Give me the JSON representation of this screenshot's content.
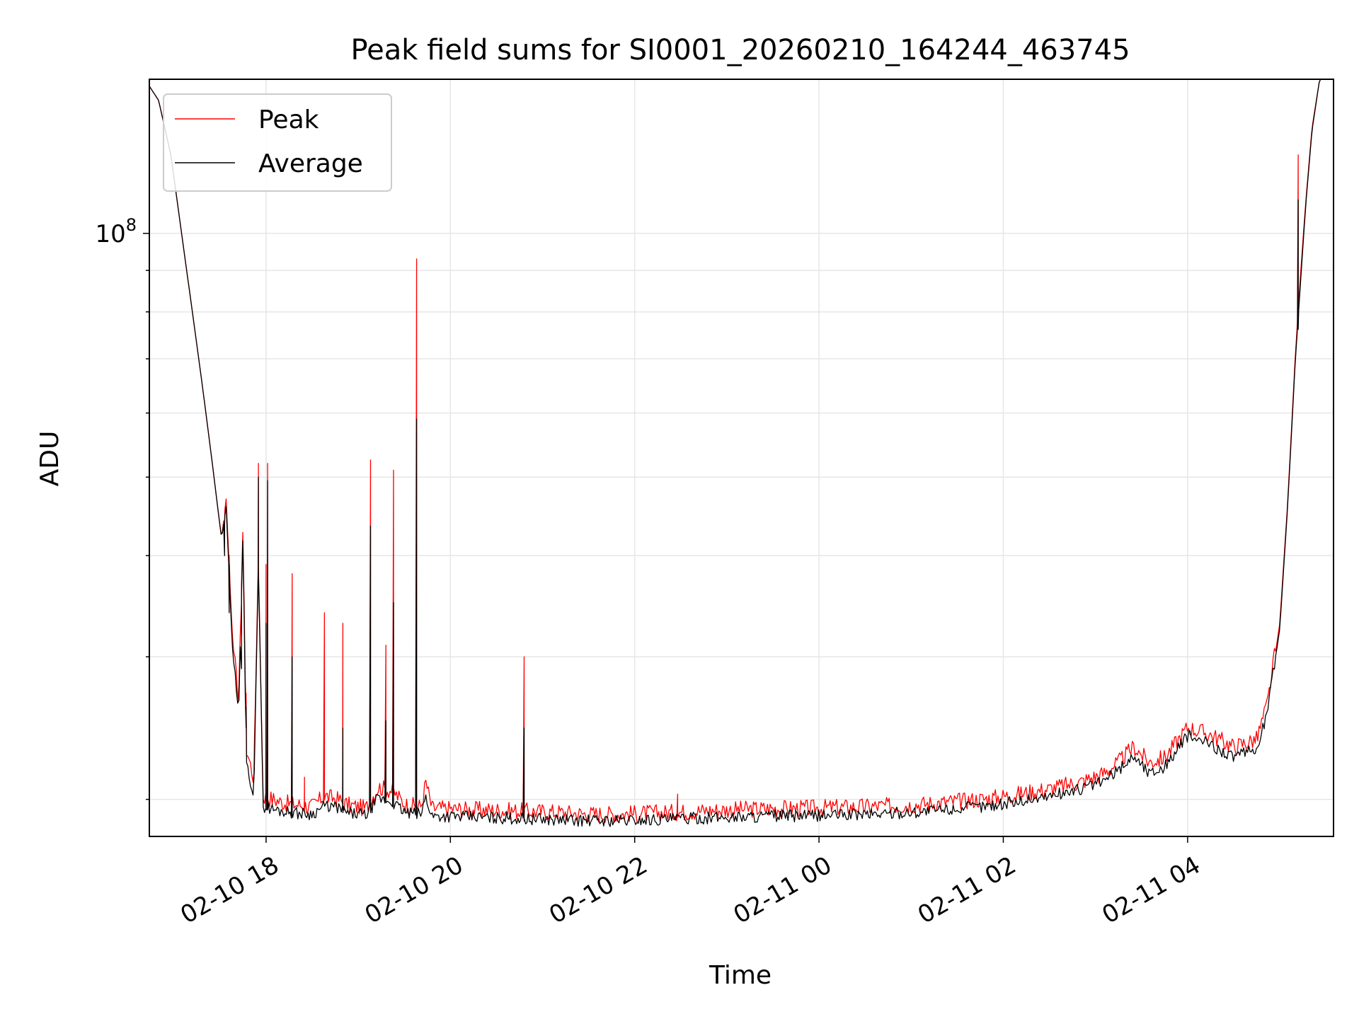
{
  "chart_data": {
    "type": "line",
    "title": "Peak field sums for SI0001_20260210_164244_463745",
    "xlabel": "Time",
    "ylabel": "ADU",
    "y_scale": "log",
    "ylim": [
      18000000,
      155000000
    ],
    "xlim": [
      "2026-02-10T16:44",
      "2026-02-11T05:35"
    ],
    "grid": true,
    "legend_position": "upper left",
    "x_ticks": [
      {
        "t": "2026-02-10T18:00",
        "label": "02-10 18"
      },
      {
        "t": "2026-02-10T20:00",
        "label": "02-10 20"
      },
      {
        "t": "2026-02-10T22:00",
        "label": "02-10 22"
      },
      {
        "t": "2026-02-11T00:00",
        "label": "02-11 00"
      },
      {
        "t": "2026-02-11T02:00",
        "label": "02-11 02"
      },
      {
        "t": "2026-02-11T04:00",
        "label": "02-11 04"
      }
    ],
    "y_ticks": [
      {
        "value": 100000000,
        "label": "10",
        "exp": "8"
      }
    ],
    "series": [
      {
        "name": "Peak",
        "color": "#ff0000",
        "points": [
          [
            "2026-02-10T16:44",
            152000000
          ],
          [
            "2026-02-10T16:50",
            146000000
          ],
          [
            "2026-02-10T16:58",
            125000000
          ],
          [
            "2026-02-10T17:05",
            100000000
          ],
          [
            "2026-02-10T17:12",
            80000000
          ],
          [
            "2026-02-10T17:18",
            66000000
          ],
          [
            "2026-02-10T17:25",
            52000000
          ],
          [
            "2026-02-10T17:31",
            42000000
          ],
          [
            "2026-02-10T17:34",
            47000000
          ],
          [
            "2026-02-10T17:38",
            32000000
          ],
          [
            "2026-02-10T17:42",
            26000000
          ],
          [
            "2026-02-10T17:45",
            44000000
          ],
          [
            "2026-02-10T17:47",
            23000000
          ],
          [
            "2026-02-10T17:52",
            21000000
          ],
          [
            "2026-02-10T17:55",
            40000000
          ],
          [
            "2026-02-10T17:58",
            20000000
          ],
          [
            "2026-02-10T18:05",
            19800000
          ],
          [
            "2026-02-10T18:12",
            19600000
          ],
          [
            "2026-02-10T18:21",
            19500000
          ],
          [
            "2026-02-10T18:30",
            19400000
          ],
          [
            "2026-02-10T18:38",
            20000000
          ],
          [
            "2026-02-10T18:47",
            19800000
          ],
          [
            "2026-02-10T18:53",
            19500000
          ],
          [
            "2026-02-10T19:05",
            19300000
          ],
          [
            "2026-02-10T19:13",
            20500000
          ],
          [
            "2026-02-10T19:22",
            20300000
          ],
          [
            "2026-02-10T19:31",
            19500000
          ],
          [
            "2026-02-10T19:41",
            19400000
          ],
          [
            "2026-02-10T19:44",
            20800000
          ],
          [
            "2026-02-10T19:48",
            19300000
          ],
          [
            "2026-02-10T19:55",
            19300000
          ],
          [
            "2026-02-10T20:10",
            19250000
          ],
          [
            "2026-02-10T20:30",
            19200000
          ],
          [
            "2026-02-10T20:50",
            19150000
          ],
          [
            "2026-02-10T21:10",
            19100000
          ],
          [
            "2026-02-10T21:30",
            19000000
          ],
          [
            "2026-02-10T21:50",
            19000000
          ],
          [
            "2026-02-10T22:10",
            19050000
          ],
          [
            "2026-02-10T22:30",
            19100000
          ],
          [
            "2026-02-10T22:50",
            19200000
          ],
          [
            "2026-02-10T23:10",
            19250000
          ],
          [
            "2026-02-10T23:30",
            19300000
          ],
          [
            "2026-02-10T23:50",
            19300000
          ],
          [
            "2026-02-11T00:10",
            19350000
          ],
          [
            "2026-02-11T00:30",
            19400000
          ],
          [
            "2026-02-11T00:50",
            19450000
          ],
          [
            "2026-02-11T01:10",
            19550000
          ],
          [
            "2026-02-11T01:30",
            19700000
          ],
          [
            "2026-02-11T01:50",
            19850000
          ],
          [
            "2026-02-11T02:10",
            20100000
          ],
          [
            "2026-02-11T02:30",
            20400000
          ],
          [
            "2026-02-11T02:50",
            20800000
          ],
          [
            "2026-02-11T03:05",
            21300000
          ],
          [
            "2026-02-11T03:15",
            22000000
          ],
          [
            "2026-02-11T03:25",
            23000000
          ],
          [
            "2026-02-11T03:35",
            22000000
          ],
          [
            "2026-02-11T03:45",
            22300000
          ],
          [
            "2026-02-11T04:00",
            24300000
          ],
          [
            "2026-02-11T04:15",
            23800000
          ],
          [
            "2026-02-11T04:30",
            23000000
          ],
          [
            "2026-02-11T04:45",
            23500000
          ],
          [
            "2026-02-11T04:52",
            26000000
          ],
          [
            "2026-02-11T05:00",
            33000000
          ],
          [
            "2026-02-11T05:05",
            46000000
          ],
          [
            "2026-02-11T05:10",
            70000000
          ],
          [
            "2026-02-11T05:13",
            86000000
          ],
          [
            "2026-02-11T05:17",
            110000000
          ],
          [
            "2026-02-11T05:21",
            135000000
          ],
          [
            "2026-02-11T05:26",
            155000000
          ],
          [
            "2026-02-11T05:35",
            155000000
          ]
        ],
        "spikes": [
          [
            "2026-02-10T17:33",
            42000000
          ],
          [
            "2026-02-10T17:36",
            39000000
          ],
          [
            "2026-02-10T17:44",
            35000000
          ],
          [
            "2026-02-10T17:47",
            26000000
          ],
          [
            "2026-02-10T17:52",
            21500000
          ],
          [
            "2026-02-10T17:55",
            52000000
          ],
          [
            "2026-02-10T18:00",
            39000000
          ],
          [
            "2026-02-10T18:01",
            52000000
          ],
          [
            "2026-02-10T18:17",
            38000000
          ],
          [
            "2026-02-10T18:25",
            21300000
          ],
          [
            "2026-02-10T18:38",
            34000000
          ],
          [
            "2026-02-10T18:50",
            33000000
          ],
          [
            "2026-02-10T19:08",
            52500000
          ],
          [
            "2026-02-10T19:18",
            31000000
          ],
          [
            "2026-02-10T19:23",
            51000000
          ],
          [
            "2026-02-10T19:38",
            93000000
          ],
          [
            "2026-02-10T20:48",
            30000000
          ],
          [
            "2026-02-10T22:28",
            20300000
          ],
          [
            "2026-02-11T05:12",
            125000000
          ]
        ]
      },
      {
        "name": "Average",
        "color": "#000000",
        "points": [
          [
            "2026-02-10T16:44",
            152000000
          ],
          [
            "2026-02-10T16:50",
            146000000
          ],
          [
            "2026-02-10T16:58",
            125000000
          ],
          [
            "2026-02-10T17:05",
            100000000
          ],
          [
            "2026-02-10T17:12",
            80000000
          ],
          [
            "2026-02-10T17:18",
            66000000
          ],
          [
            "2026-02-10T17:25",
            52000000
          ],
          [
            "2026-02-10T17:31",
            42000000
          ],
          [
            "2026-02-10T17:34",
            46000000
          ],
          [
            "2026-02-10T17:38",
            31000000
          ],
          [
            "2026-02-10T17:42",
            25000000
          ],
          [
            "2026-02-10T17:45",
            43000000
          ],
          [
            "2026-02-10T17:47",
            22000000
          ],
          [
            "2026-02-10T17:52",
            20200000
          ],
          [
            "2026-02-10T17:55",
            39000000
          ],
          [
            "2026-02-10T17:58",
            19500000
          ],
          [
            "2026-02-10T18:05",
            19300000
          ],
          [
            "2026-02-10T18:12",
            19200000
          ],
          [
            "2026-02-10T18:21",
            19100000
          ],
          [
            "2026-02-10T18:30",
            19050000
          ],
          [
            "2026-02-10T18:38",
            19500000
          ],
          [
            "2026-02-10T18:47",
            19400000
          ],
          [
            "2026-02-10T18:53",
            19100000
          ],
          [
            "2026-02-10T19:05",
            19000000
          ],
          [
            "2026-02-10T19:13",
            19900000
          ],
          [
            "2026-02-10T19:22",
            19700000
          ],
          [
            "2026-02-10T19:31",
            19100000
          ],
          [
            "2026-02-10T19:41",
            19050000
          ],
          [
            "2026-02-10T19:44",
            20000000
          ],
          [
            "2026-02-10T19:48",
            18950000
          ],
          [
            "2026-02-10T19:55",
            18950000
          ],
          [
            "2026-02-10T20:10",
            18900000
          ],
          [
            "2026-02-10T20:30",
            18850000
          ],
          [
            "2026-02-10T20:50",
            18800000
          ],
          [
            "2026-02-10T21:10",
            18750000
          ],
          [
            "2026-02-10T21:30",
            18700000
          ],
          [
            "2026-02-10T21:50",
            18700000
          ],
          [
            "2026-02-10T22:10",
            18750000
          ],
          [
            "2026-02-10T22:30",
            18800000
          ],
          [
            "2026-02-10T22:50",
            18850000
          ],
          [
            "2026-02-10T23:10",
            18900000
          ],
          [
            "2026-02-10T23:30",
            18950000
          ],
          [
            "2026-02-10T23:50",
            18950000
          ],
          [
            "2026-02-11T00:10",
            19000000
          ],
          [
            "2026-02-11T00:30",
            19050000
          ],
          [
            "2026-02-11T00:50",
            19100000
          ],
          [
            "2026-02-11T01:10",
            19200000
          ],
          [
            "2026-02-11T01:30",
            19350000
          ],
          [
            "2026-02-11T01:50",
            19500000
          ],
          [
            "2026-02-11T02:10",
            19750000
          ],
          [
            "2026-02-11T02:30",
            20050000
          ],
          [
            "2026-02-11T02:50",
            20450000
          ],
          [
            "2026-02-11T03:05",
            20900000
          ],
          [
            "2026-02-11T03:15",
            21600000
          ],
          [
            "2026-02-11T03:25",
            22500000
          ],
          [
            "2026-02-11T03:35",
            21400000
          ],
          [
            "2026-02-11T03:45",
            21800000
          ],
          [
            "2026-02-11T04:00",
            23800000
          ],
          [
            "2026-02-11T04:15",
            23200000
          ],
          [
            "2026-02-11T04:30",
            22400000
          ],
          [
            "2026-02-11T04:45",
            22900000
          ],
          [
            "2026-02-11T04:52",
            25500000
          ],
          [
            "2026-02-11T05:00",
            32500000
          ],
          [
            "2026-02-11T05:05",
            45500000
          ],
          [
            "2026-02-11T05:10",
            69000000
          ],
          [
            "2026-02-11T05:13",
            84000000
          ],
          [
            "2026-02-11T05:17",
            109000000
          ],
          [
            "2026-02-11T05:21",
            134000000
          ],
          [
            "2026-02-11T05:26",
            155000000
          ],
          [
            "2026-02-11T05:35",
            155000000
          ]
        ],
        "spikes": [
          [
            "2026-02-10T17:33",
            40000000
          ],
          [
            "2026-02-10T17:36",
            34000000
          ],
          [
            "2026-02-10T17:44",
            29000000
          ],
          [
            "2026-02-10T17:47",
            24500000
          ],
          [
            "2026-02-10T17:55",
            50000000
          ],
          [
            "2026-02-10T18:00",
            33000000
          ],
          [
            "2026-02-10T18:01",
            49500000
          ],
          [
            "2026-02-10T18:17",
            30000000
          ],
          [
            "2026-02-10T18:50",
            24500000
          ],
          [
            "2026-02-10T19:08",
            43500000
          ],
          [
            "2026-02-10T19:18",
            25000000
          ],
          [
            "2026-02-10T19:23",
            35000000
          ],
          [
            "2026-02-10T19:38",
            59000000
          ],
          [
            "2026-02-10T20:48",
            24500000
          ],
          [
            "2026-02-11T05:12",
            110000000
          ]
        ]
      }
    ]
  }
}
